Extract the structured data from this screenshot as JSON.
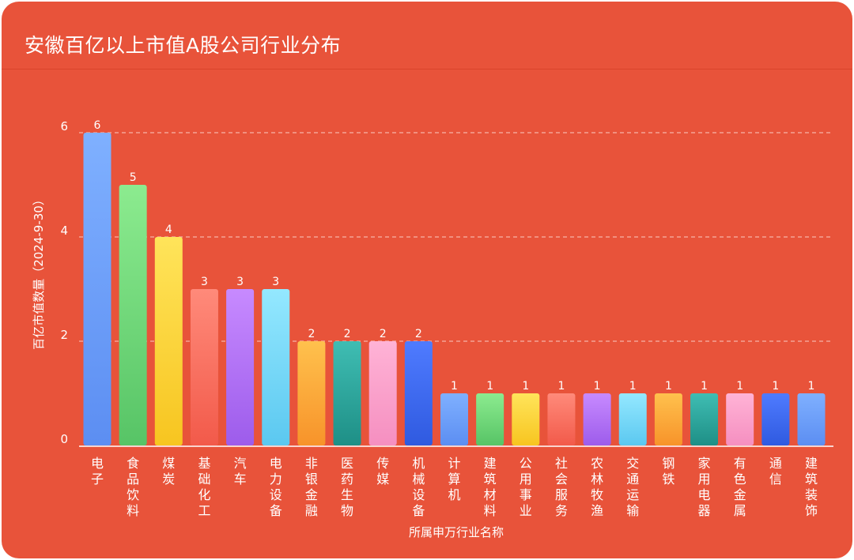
{
  "card": {
    "title": "安徽百亿以上市值A股公司行业分布"
  },
  "chart_data": {
    "type": "bar",
    "title": "安徽百亿以上市值A股公司行业分布",
    "xlabel": "所属申万行业名称",
    "ylabel": "百亿市值数量（2024-9-30）",
    "ylim": [
      0,
      6
    ],
    "yticks": [
      0,
      2,
      4,
      6
    ],
    "grid": true,
    "categories": [
      "电子",
      "食品饮料",
      "煤炭",
      "基础化工",
      "汽车",
      "电力设备",
      "非银金融",
      "医药生物",
      "传媒",
      "机械设备",
      "计算机",
      "建筑材料",
      "公用事业",
      "社会服务",
      "农林牧渔",
      "交通运输",
      "钢铁",
      "家用电器",
      "有色金属",
      "通信",
      "建筑装饰"
    ],
    "values": [
      6,
      5,
      4,
      3,
      3,
      3,
      2,
      2,
      2,
      2,
      1,
      1,
      1,
      1,
      1,
      1,
      1,
      1,
      1,
      1,
      1
    ],
    "colors": [
      [
        "#7FB0FF",
        "#5C8EF2"
      ],
      [
        "#8CEB8F",
        "#57C466"
      ],
      [
        "#FFE45A",
        "#F7C520"
      ],
      [
        "#FF8A7A",
        "#F25A4A"
      ],
      [
        "#C78AFF",
        "#9D5CEB"
      ],
      [
        "#94E8FF",
        "#5BC8F0"
      ],
      [
        "#FFC14D",
        "#F7932A"
      ],
      [
        "#3FBDB3",
        "#1E8F86"
      ],
      [
        "#FFB3D6",
        "#F58FC0"
      ],
      [
        "#4F7BFF",
        "#2F5AE0"
      ],
      [
        "#7FB0FF",
        "#5C8EF2"
      ],
      [
        "#8CEB8F",
        "#57C466"
      ],
      [
        "#FFE45A",
        "#F7C520"
      ],
      [
        "#FF8A7A",
        "#F25A4A"
      ],
      [
        "#C78AFF",
        "#9D5CEB"
      ],
      [
        "#94E8FF",
        "#5BC8F0"
      ],
      [
        "#FFC14D",
        "#F7932A"
      ],
      [
        "#3FBDB3",
        "#1E8F86"
      ],
      [
        "#FFB3D6",
        "#F58FC0"
      ],
      [
        "#4F7BFF",
        "#2F5AE0"
      ],
      [
        "#7FB0FF",
        "#5C8EF2"
      ]
    ]
  }
}
